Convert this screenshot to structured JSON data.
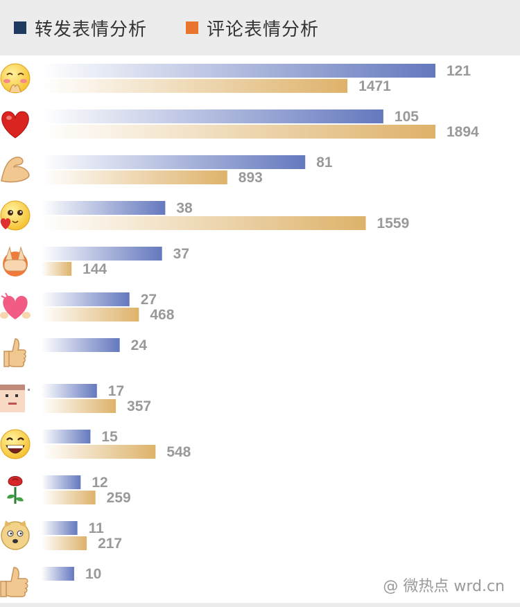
{
  "legend": {
    "forward_label": "转发表情分析",
    "comment_label": "评论表情分析",
    "forward_color": "#1e3a5f",
    "comment_color": "#e8742e"
  },
  "watermark": "@ 微热点  wrd.cn",
  "chart_data": {
    "type": "bar",
    "orientation": "horizontal",
    "categories": [
      "heart-hands-face-icon",
      "red-heart-icon",
      "flexed-biceps-icon",
      "blushing-heart-face-icon",
      "hands-covering-face-icon",
      "hugging-heart-icon",
      "thumbs-up-icon",
      "pixel-character-icon",
      "laughing-face-icon",
      "rose-icon",
      "doge-icon",
      "thumbs-up-large-icon"
    ],
    "series": [
      {
        "name": "转发表情分析",
        "values": [
          121,
          105,
          81,
          38,
          37,
          27,
          24,
          17,
          15,
          12,
          11,
          10
        ],
        "bar_color": "#6478be"
      },
      {
        "name": "评论表情分析",
        "values": [
          1471,
          1894,
          893,
          1559,
          144,
          468,
          null,
          357,
          548,
          259,
          217,
          null
        ],
        "bar_color": "#deb26a"
      }
    ],
    "legend_position": "top-left",
    "grid": false
  }
}
